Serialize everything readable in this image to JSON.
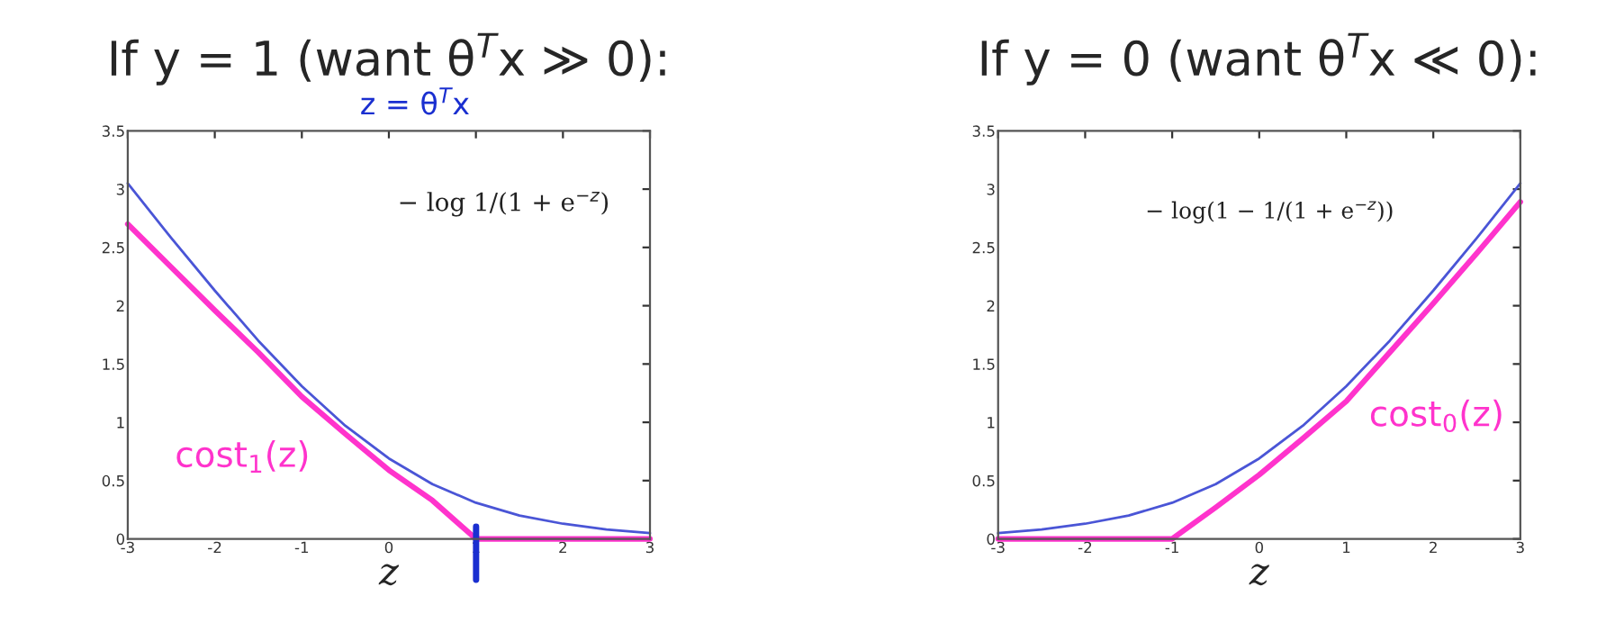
{
  "chart_data": [
    {
      "type": "line",
      "title": "If y = 1 (want θ$^{T}$x ≫ 0):",
      "xlabel": "z",
      "xlim": [
        -3,
        3
      ],
      "xticks": [
        -3,
        -2,
        -1,
        0,
        1,
        2,
        3
      ],
      "ylim": [
        0,
        3.5
      ],
      "yticks": [
        0,
        0.5,
        1,
        1.5,
        2,
        2.5,
        3,
        3.5
      ],
      "grid": false,
      "legend": false,
      "series": [
        {
          "color": "#4a55d6",
          "x": [
            -3,
            -2.5,
            -2,
            -1.5,
            -1,
            -0.5,
            0,
            0.5,
            1,
            1.5,
            2,
            2.5,
            3
          ],
          "values": [
            3.05,
            2.58,
            2.13,
            1.7,
            1.31,
            0.97,
            0.69,
            0.47,
            0.31,
            0.2,
            0.13,
            0.08,
            0.05
          ]
        },
        {
          "color": "#ff33cc",
          "x": [
            -3,
            -2.5,
            -2,
            -1.5,
            -1,
            -0.5,
            0,
            0.5,
            1,
            2,
            3
          ],
          "values": [
            2.7,
            2.33,
            1.96,
            1.6,
            1.22,
            0.9,
            0.59,
            0.33,
            0,
            0,
            0
          ]
        }
      ],
      "annotations": [
        "z = θ$^{T}$x",
        "− log 1/(1 + e$^{−z}$)",
        "cost$_{1}$(z)"
      ]
    },
    {
      "type": "line",
      "title": "If y = 0 (want θ$^{T}$x ≪ 0):",
      "xlabel": "z",
      "xlim": [
        -3,
        3
      ],
      "xticks": [
        -3,
        -2,
        -1,
        0,
        1,
        2,
        3
      ],
      "ylim": [
        0,
        3.5
      ],
      "yticks": [
        0,
        0.5,
        1,
        1.5,
        2,
        2.5,
        3,
        3.5
      ],
      "grid": false,
      "legend": false,
      "series": [
        {
          "color": "#4a55d6",
          "x": [
            -3,
            -2.5,
            -2,
            -1.5,
            -1,
            -0.5,
            0,
            0.5,
            1,
            1.5,
            2,
            2.5,
            3
          ],
          "values": [
            0.05,
            0.08,
            0.13,
            0.2,
            0.31,
            0.47,
            0.69,
            0.97,
            1.31,
            1.7,
            2.13,
            2.58,
            3.05
          ]
        },
        {
          "color": "#ff33cc",
          "x": [
            -3,
            -2,
            -1,
            -0.5,
            0,
            0.5,
            1,
            1.5,
            2,
            2.5,
            3
          ],
          "values": [
            0,
            0,
            0,
            0.27,
            0.55,
            0.86,
            1.18,
            1.6,
            2.02,
            2.45,
            2.89
          ]
        }
      ],
      "annotations": [
        "− log(1 − 1/(1 + e$^{−z}$))",
        "cost$_{0}$(z)"
      ]
    }
  ]
}
